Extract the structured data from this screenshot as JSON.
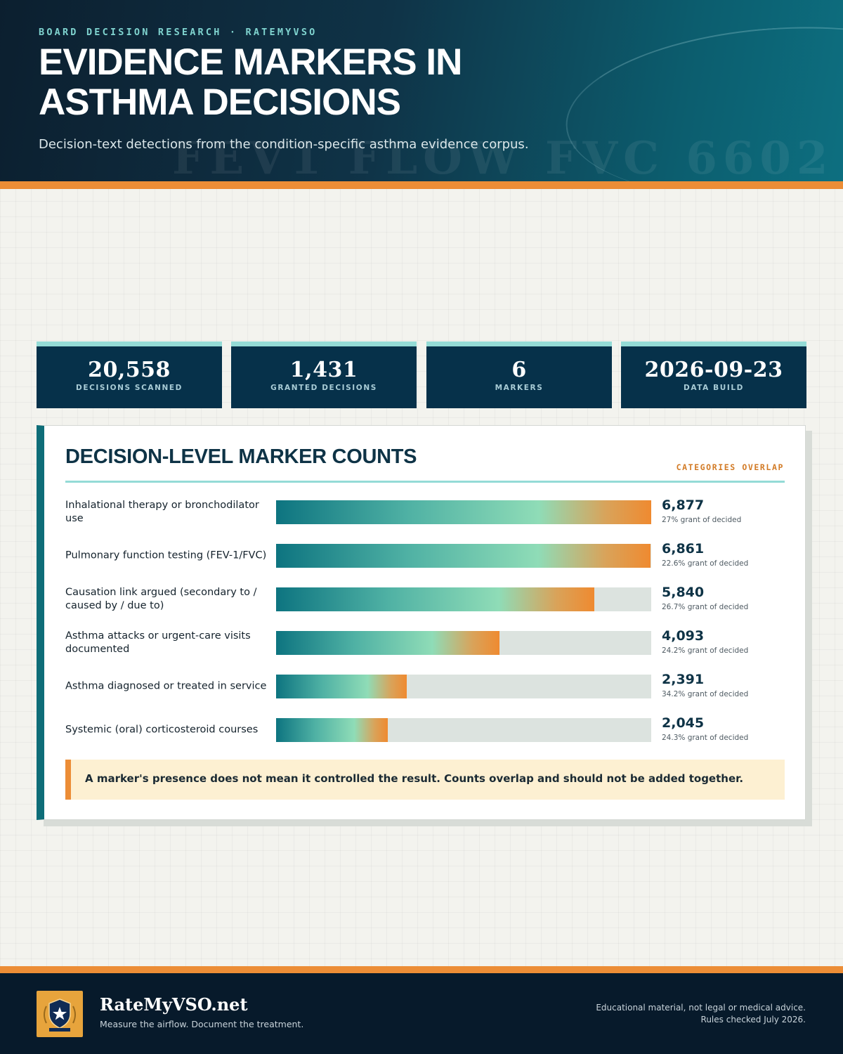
{
  "header": {
    "eyebrow": "BOARD DECISION RESEARCH · RATEMYVSO",
    "title": "Evidence Markers in Asthma Decisions",
    "subtitle": "Decision-text detections from the condition-specific asthma evidence corpus.",
    "watermark": "FEV1 FLOW FVC 6602"
  },
  "stats": [
    {
      "value": "20,558",
      "label": "Decisions scanned"
    },
    {
      "value": "1,431",
      "label": "Granted decisions"
    },
    {
      "value": "6",
      "label": "Markers"
    },
    {
      "value": "2026-09-23",
      "label": "Data build"
    }
  ],
  "chart_data": {
    "type": "bar",
    "orientation": "horizontal",
    "title": "Decision-level marker counts",
    "tag": "CATEGORIES OVERLAP",
    "categories": [
      "Inhalational therapy or bronchodilator use",
      "Pulmonary function testing (FEV-1/FVC)",
      "Causation link argued (secondary to / caused by / due to)",
      "Asthma attacks or urgent-care visits documented",
      "Asthma diagnosed or treated in service",
      "Systemic (oral) corticosteroid courses"
    ],
    "values": [
      6877,
      6861,
      5840,
      4093,
      2391,
      2045
    ],
    "value_labels": [
      "6,877",
      "6,861",
      "5,840",
      "4,093",
      "2,391",
      "2,045"
    ],
    "sublabels": [
      "27% grant of decided",
      "22.6% grant of decided",
      "26.7% grant of decided",
      "24.2% grant of decided",
      "34.2% grant of decided",
      "24.3% grant of decided"
    ],
    "xlim": [
      0,
      6877
    ],
    "note": "A marker's presence does not mean it controlled the result. Counts overlap and should not be added together."
  },
  "colors": {
    "header_dark": "#0c1f2f",
    "accent_orange": "#ec8d36",
    "accent_teal": "#0e6d78",
    "card_bg": "#06314a",
    "card_top": "#94dbd6",
    "bar_start": "#0d7480",
    "bar_mid": "#8fdcb7",
    "bar_end": "#ef8a30"
  },
  "footer": {
    "logo_icon": "shield-star-icon",
    "brand": "RateMyVSO.net",
    "tagline": "Measure the airflow. Document the treatment.",
    "disclaimer_1": "Educational material, not legal or medical advice.",
    "disclaimer_2": "Rules checked July 2026."
  }
}
